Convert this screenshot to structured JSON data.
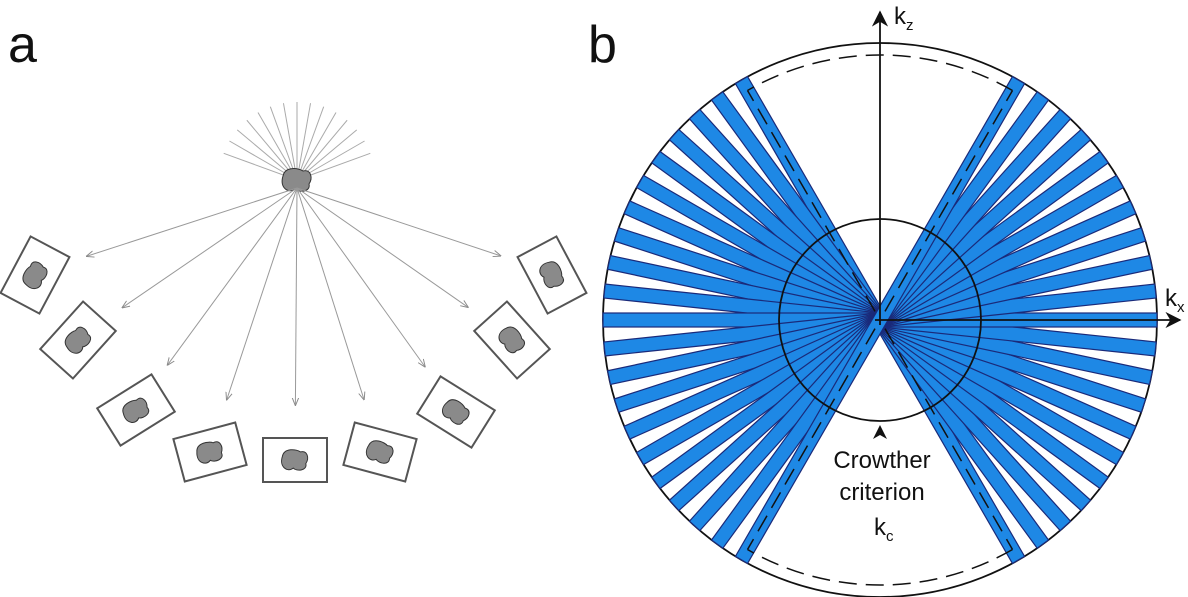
{
  "panel_a": {
    "label": "a"
  },
  "panel_b": {
    "label": "b",
    "axis_z": {
      "symbol": "k",
      "subscript": "z"
    },
    "axis_x": {
      "symbol": "k",
      "subscript": "x"
    },
    "annotation": {
      "lines": [
        "Crowther",
        "criterion"
      ],
      "symbol": "k",
      "subscript": "c"
    }
  }
}
